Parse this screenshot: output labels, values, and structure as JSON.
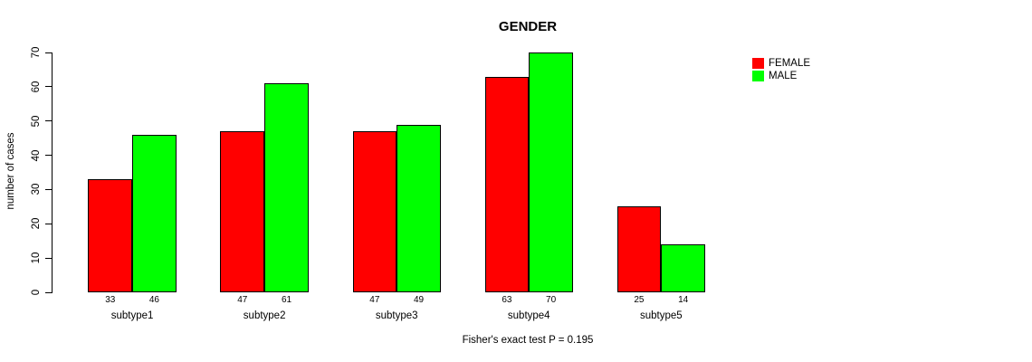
{
  "chart_data": {
    "type": "bar",
    "title": "GENDER",
    "ylabel": "number of cases",
    "xlabel": "",
    "caption": "Fisher's exact test P = 0.195",
    "categories": [
      "subtype1",
      "subtype2",
      "subtype3",
      "subtype4",
      "subtype5"
    ],
    "series": [
      {
        "name": "FEMALE",
        "color": "#FF0000",
        "values": [
          33,
          47,
          47,
          63,
          25
        ]
      },
      {
        "name": "MALE",
        "color": "#00FF00",
        "values": [
          46,
          61,
          49,
          70,
          14
        ]
      }
    ],
    "ylim": [
      0,
      70
    ],
    "yticks": [
      0,
      10,
      20,
      30,
      40,
      50,
      60,
      70
    ],
    "bar_value_labels": true,
    "legend_position": "top-right",
    "grid": false
  }
}
